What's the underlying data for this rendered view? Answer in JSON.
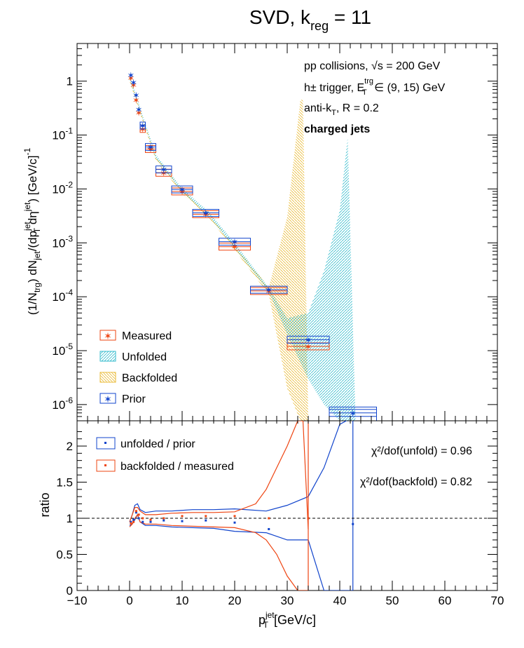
{
  "title_main": "SVD, k",
  "title_sub": "reg",
  "title_suffix": " = 11",
  "annotations": {
    "line1": "pp collisions, √s = 200 GeV",
    "line2": "h± trigger, E",
    "line2_sup": "trg",
    "line2_sub": "T",
    "line2_rest": " ∈ (9, 15) GeV",
    "line3": "anti-k",
    "line3_sub": "T",
    "line3_rest": ", R = 0.2",
    "line4": "charged jets"
  },
  "top_ylabel": "(1/N_trg) dN_jet/(dp_T^jet dη^jet) [GeV/c]^-1",
  "top_legend": [
    "Measured",
    "Unfolded",
    "Backfolded",
    "Prior"
  ],
  "bottom_legend": [
    "unfolded / prior",
    "backfolded / measured"
  ],
  "chi2_unfold": "χ²/dof(unfold) = 0.96",
  "chi2_backfold": "χ²/dof(backfold) = 0.82",
  "bottom_ylabel": "ratio",
  "xlabel": "p_T^jet [GeV/c]",
  "colors": {
    "measured": "#ee4411",
    "unfolded": "#33bbcc",
    "backfolded": "#e8b830",
    "prior": "#1144cc"
  },
  "chart_data": [
    {
      "type": "scatter",
      "title": "SVD, k_reg = 11",
      "xlabel": "p_T^jet [GeV/c]",
      "ylabel": "(1/N_trg) dN_jet/(dp_T^jet dη^jet) [GeV/c]^-1",
      "yscale": "log",
      "xlim": [
        -10,
        70
      ],
      "ylim": [
        5e-07,
        5
      ],
      "legend_position": "bottom-left",
      "series": [
        {
          "name": "Measured",
          "x": [
            0.25,
            0.75,
            1.25,
            1.75,
            2.5,
            4,
            6.5,
            10,
            14.5,
            20,
            26.5,
            34
          ],
          "y": [
            1.15,
            0.85,
            0.45,
            0.26,
            0.13,
            0.055,
            0.02,
            0.009,
            0.0034,
            0.00085,
            0.000128,
            1.2e-05
          ],
          "xerr": [
            0.25,
            0.25,
            0.25,
            0.25,
            0.5,
            1,
            1.5,
            2,
            2.5,
            3,
            3.5,
            4
          ]
        },
        {
          "name": "Prior",
          "x": [
            0.25,
            0.75,
            1.25,
            1.75,
            2.5,
            4,
            6.5,
            10,
            14.5,
            20,
            26.5,
            34,
            42.5
          ],
          "y": [
            1.3,
            0.95,
            0.55,
            0.3,
            0.15,
            0.06,
            0.023,
            0.0098,
            0.0036,
            0.00105,
            0.000135,
            1.6e-05,
            7e-07
          ],
          "xerr": [
            0.25,
            0.25,
            0.25,
            0.25,
            0.5,
            1,
            1.5,
            2,
            2.5,
            3,
            3.5,
            4,
            4.5
          ]
        },
        {
          "name": "Unfolded",
          "x": [
            0,
            2,
            5,
            10,
            15,
            20,
            26.5,
            30,
            34,
            37,
            40,
            41.5,
            43
          ],
          "y_center": [
            1.2,
            0.3,
            0.04,
            0.0095,
            0.0035,
            0.0009,
            0.000135,
            3e-05,
            1.6e-05,
            1e-05,
            1e-05,
            1e-05,
            1e-05
          ],
          "band_low": [
            1.1,
            0.28,
            0.037,
            0.0088,
            0.0032,
            0.0008,
            0.000125,
            2e-05,
            3e-06,
            1e-06,
            5e-07,
            5e-07,
            5e-07
          ],
          "band_high": [
            1.3,
            0.32,
            0.043,
            0.0102,
            0.0038,
            0.001,
            0.000145,
            4e-05,
            5e-05,
            0.0003,
            0.004,
            0.09,
            5e-07
          ]
        },
        {
          "name": "Backfolded",
          "x": [
            0,
            2,
            5,
            10,
            15,
            20,
            26.5,
            30,
            32.5,
            33,
            34
          ],
          "y_center": [
            1.1,
            0.27,
            0.037,
            0.0088,
            0.0032,
            0.0008,
            0.00013,
            5e-05,
            1.2e-05,
            1e-05,
            1e-05
          ],
          "band_low": [
            1.0,
            0.25,
            0.034,
            0.0082,
            0.003,
            0.00074,
            0.00011,
            2e-06,
            5e-07,
            5e-07,
            5e-07
          ],
          "band_high": [
            1.2,
            0.29,
            0.04,
            0.0094,
            0.0034,
            0.00086,
            0.00015,
            0.003,
            0.45,
            0.45,
            5e-07
          ]
        }
      ]
    },
    {
      "type": "line",
      "xlabel": "p_T^jet [GeV/c]",
      "ylabel": "ratio",
      "xlim": [
        -10,
        70
      ],
      "ylim": [
        0,
        2.35
      ],
      "reference_line": 1,
      "series": [
        {
          "name": "unfolded / prior",
          "points_x": [
            0.25,
            0.75,
            1.25,
            1.75,
            2.5,
            4,
            6.5,
            10,
            14.5,
            20,
            26.5,
            34,
            42.5
          ],
          "points_y": [
            0.95,
            0.98,
            1.08,
            1.0,
            0.95,
            0.95,
            0.97,
            0.96,
            0.97,
            0.94,
            0.85,
            1.0,
            0.92
          ],
          "band_x": [
            0,
            0.5,
            1,
            1.5,
            2,
            3,
            5,
            8,
            12,
            16,
            20,
            26,
            30,
            34,
            37,
            40,
            42.5
          ],
          "band_high": [
            0.95,
            1.05,
            1.18,
            1.2,
            1.12,
            1.08,
            1.1,
            1.1,
            1.12,
            1.12,
            1.13,
            1.1,
            1.18,
            1.3,
            1.7,
            2.3,
            2.4
          ],
          "band_low": [
            0.9,
            0.92,
            0.98,
            1.05,
            0.95,
            0.9,
            0.9,
            0.88,
            0.87,
            0.86,
            0.82,
            0.8,
            0.7,
            0.7,
            0,
            0,
            0
          ]
        },
        {
          "name": "backfolded / measured",
          "points_x": [
            0.25,
            0.75,
            1.25,
            1.75,
            2.5,
            4,
            6.5,
            10,
            14.5,
            20,
            26.5,
            34
          ],
          "points_y": [
            0.93,
            0.95,
            1.1,
            1.05,
            1.0,
            0.98,
            1.0,
            1.03,
            1.03,
            1.03,
            1.0,
            1.0
          ],
          "band_x": [
            0,
            0.5,
            1,
            1.5,
            2,
            3,
            5,
            8,
            12,
            16,
            20,
            24,
            26,
            28,
            30,
            32,
            33,
            34
          ],
          "band_high": [
            0.95,
            1.05,
            1.15,
            1.15,
            1.1,
            1.05,
            1.05,
            1.07,
            1.08,
            1.08,
            1.09,
            1.2,
            1.4,
            1.7,
            2.0,
            2.35,
            2.35,
            0.85
          ],
          "band_low": [
            0.88,
            0.92,
            1.0,
            1.05,
            0.95,
            0.92,
            0.92,
            0.9,
            0.89,
            0.88,
            0.87,
            0.8,
            0.7,
            0.5,
            0.2,
            0,
            0,
            0
          ]
        }
      ]
    }
  ]
}
